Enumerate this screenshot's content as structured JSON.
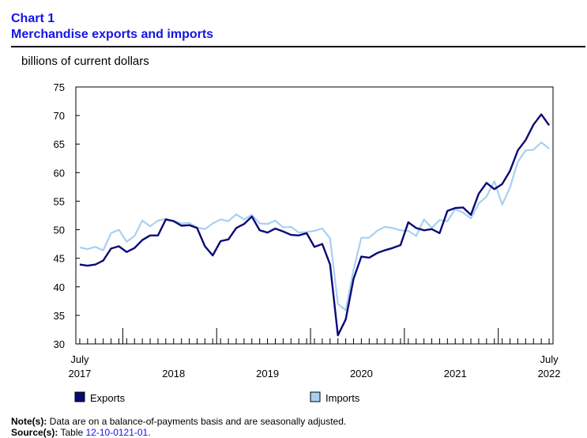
{
  "header": {
    "chart_number": "Chart 1",
    "title": "Merchandise exports and imports"
  },
  "unit_label": "billions of current dollars",
  "notes": {
    "note_label": "Note(s):",
    "note_text": "Data are on a balance-of-payments basis and are seasonally adjusted.",
    "source_label": "Source(s):",
    "source_prefix": "Table",
    "source_table": "12-10-0121-01",
    "source_suffix": "."
  },
  "colors": {
    "exports": "#0a0a78",
    "imports": "#a8d0f0",
    "title": "#1414e6"
  },
  "chart_data": {
    "type": "line",
    "title": "Merchandise exports and imports",
    "ylabel": "billions of current dollars",
    "ylim": [
      30,
      75
    ],
    "yticks": [
      30,
      35,
      40,
      45,
      50,
      55,
      60,
      65,
      70,
      75
    ],
    "x_start": "2017-07",
    "x_end": "2022-07",
    "x_month_labels": [
      {
        "month": "2017-07",
        "text": "July"
      },
      {
        "month": "2022-07",
        "text": "July"
      }
    ],
    "x_year_labels": [
      {
        "year": "2017",
        "center": "2017-07"
      },
      {
        "year": "2018",
        "center": "2018-07"
      },
      {
        "year": "2019",
        "center": "2019-07"
      },
      {
        "year": "2020",
        "center": "2020-07"
      },
      {
        "year": "2021",
        "center": "2021-07"
      },
      {
        "year": "2022",
        "center": "2022-07"
      }
    ],
    "legend_placement": "bottom",
    "grid": false,
    "series": [
      {
        "name": "Exports",
        "values": [
          43.9,
          43.7,
          43.9,
          44.6,
          46.7,
          47.1,
          46.1,
          46.8,
          48.2,
          49.0,
          49.0,
          51.8,
          51.5,
          50.7,
          50.8,
          50.3,
          47.1,
          45.5,
          48.0,
          48.3,
          50.3,
          51.0,
          52.3,
          49.9,
          49.5,
          50.2,
          49.7,
          49.1,
          49.0,
          49.4,
          47.0,
          47.5,
          43.9,
          31.5,
          34.3,
          41.4,
          45.3,
          45.1,
          45.9,
          46.4,
          46.8,
          47.3,
          51.3,
          50.3,
          49.9,
          50.1,
          49.4,
          53.3,
          53.8,
          53.9,
          52.6,
          56.3,
          58.2,
          57.1,
          58.0,
          60.3,
          63.9,
          65.7,
          68.4,
          70.2,
          68.3
        ]
      },
      {
        "name": "Imports",
        "values": [
          46.9,
          46.6,
          47.0,
          46.4,
          49.4,
          50.0,
          47.9,
          48.9,
          51.6,
          50.6,
          51.6,
          51.9,
          51.5,
          51.1,
          51.2,
          50.4,
          50.1,
          51.1,
          51.8,
          51.5,
          52.7,
          51.8,
          52.6,
          51.1,
          51.0,
          51.6,
          50.4,
          50.5,
          49.5,
          49.6,
          49.8,
          50.2,
          48.5,
          37.0,
          35.9,
          43.0,
          48.6,
          48.6,
          49.8,
          50.5,
          50.3,
          49.9,
          49.8,
          48.9,
          51.8,
          50.3,
          51.7,
          51.5,
          53.6,
          53.0,
          52.0,
          54.6,
          55.8,
          58.5,
          54.4,
          57.4,
          61.9,
          63.9,
          64.0,
          65.3,
          64.2
        ]
      }
    ]
  }
}
